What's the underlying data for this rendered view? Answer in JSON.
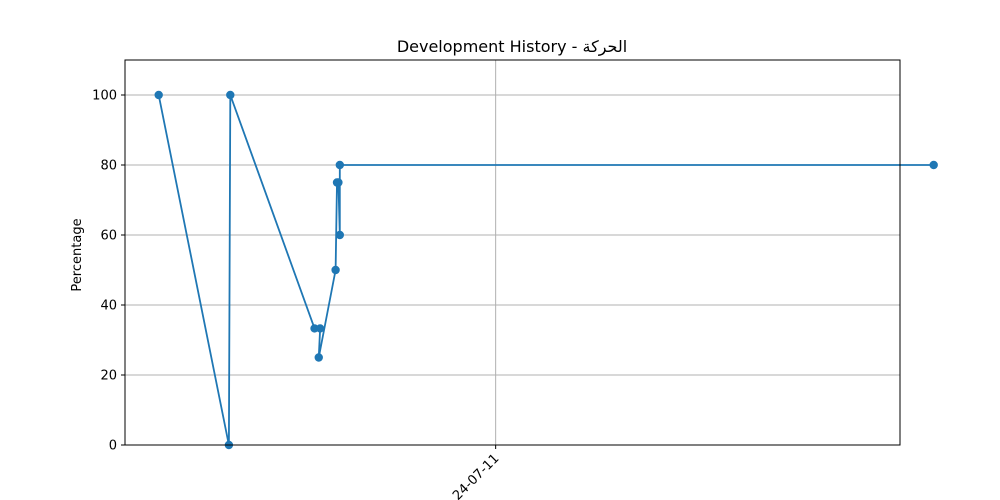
{
  "chart_data": {
    "type": "line",
    "title": "Development History - الحركة",
    "xlabel": "",
    "ylabel": "Percentage",
    "x_axis_type": "date",
    "x_ticks": [
      "2024-07-11"
    ],
    "x_tick_label_visible": "24-07-11",
    "xlim": [
      "2024-06-30",
      "2024-07-23"
    ],
    "ylim": [
      0,
      110
    ],
    "y_ticks": [
      0,
      20,
      40,
      60,
      80,
      100
    ],
    "grid": true,
    "legend": "none",
    "series": [
      {
        "color": "#1f77b4",
        "marker": "circle",
        "points": [
          {
            "x": "2024-07-01 00:00",
            "y": 100
          },
          {
            "x": "2024-07-03 02:00",
            "y": 0
          },
          {
            "x": "2024-07-03 03:00",
            "y": 100
          },
          {
            "x": "2024-07-05 15:00",
            "y": 33.3
          },
          {
            "x": "2024-07-05 19:00",
            "y": 33.3
          },
          {
            "x": "2024-07-05 18:00",
            "y": 25
          },
          {
            "x": "2024-07-06 06:00",
            "y": 50
          },
          {
            "x": "2024-07-06 07:00",
            "y": 75
          },
          {
            "x": "2024-07-06 08:00",
            "y": 75
          },
          {
            "x": "2024-07-06 09:00",
            "y": 60
          },
          {
            "x": "2024-07-06 09:00",
            "y": 80
          },
          {
            "x": "2024-07-24 00:00",
            "y": 80
          }
        ]
      }
    ]
  }
}
